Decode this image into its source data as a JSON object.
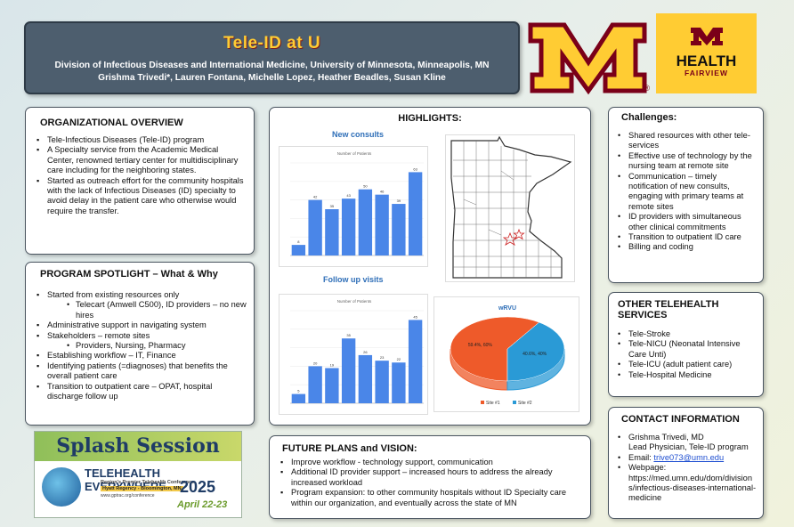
{
  "header": {
    "title": "Tele-ID at U",
    "division": "Division of Infectious Diseases and International Medicine, University of Minnesota, Minneapolis, MN",
    "authors": "Grishma Trivedi*, Lauren Fontana, Michelle Lopez, Heather Beadles, Susan Kline"
  },
  "logos": {
    "umn_registered": "®",
    "hf_line1": "HEALTH",
    "hf_line2": "FAIRVIEW"
  },
  "org_overview": {
    "title": "ORGANIZATIONAL OVERVIEW",
    "items": [
      "Tele-Infectious Diseases (Tele-ID) program",
      "A Specialty service from the Academic Medical Center, renowned tertiary center for multidisciplinary care including for the neighboring states.",
      "Started as outreach effort for the community hospitals with the lack of Infectious Diseases (ID) specialty to avoid delay in the patient care who otherwise would require the transfer."
    ]
  },
  "spotlight": {
    "title": "PROGRAM SPOTLIGHT – What & Why",
    "items": [
      "Started from existing resources only",
      "Telecart (Amwell C500), ID providers – no new hires",
      "Administrative support in navigating system",
      "Stakeholders – remote sites",
      "Providers, Nursing, Pharmacy",
      "Establishing workflow – IT, Finance",
      "Identifying patients (=diagnoses) that benefits the overall patient care",
      "Transition to outpatient care – OPAT, hospital discharge follow up"
    ]
  },
  "highlights": {
    "title": "HIGHLIGHTS:",
    "new_consults_label": "New consults",
    "follow_up_label": "Follow up visits"
  },
  "chart_data": [
    {
      "type": "bar",
      "title": "Number of Patients",
      "values": [
        8,
        42,
        35,
        43,
        50,
        46,
        39,
        63
      ],
      "ylim": [
        0,
        70
      ],
      "color": "#4a86e8"
    },
    {
      "type": "bar",
      "title": "Number of Patients",
      "values": [
        5,
        20,
        19,
        35,
        26,
        23,
        22,
        45
      ],
      "ylim": [
        0,
        50
      ],
      "color": "#4a86e8"
    },
    {
      "type": "pie",
      "title": "wRVU",
      "series": [
        {
          "name": "Site #1",
          "value": 59.4,
          "label": "59.4%, 60%",
          "color": "#ee5a2a"
        },
        {
          "name": "Site #2",
          "value": 40.6,
          "label": "40.6%, 40%",
          "color": "#2a9ad6"
        }
      ],
      "legend": "bottom"
    }
  ],
  "challenges": {
    "title": "Challenges:",
    "items": [
      "Shared resources with other tele-services",
      "Effective use of technology by the nursing team at remote site",
      "Communication – timely notification of new consults, engaging with primary teams at remote sites",
      "ID providers with simultaneous other clinical commitments",
      "Transition to outpatient ID care",
      "Billing and coding"
    ]
  },
  "other_services": {
    "title": "OTHER TELEHEALTH SERVICES",
    "items": [
      "Tele-Stroke",
      "Tele-NICU (Neonatal Intensive Care Unti)",
      "Tele-ICU (adult patient care)",
      "Tele-Hospital Medicine"
    ]
  },
  "contact": {
    "title": "CONTACT INFORMATION",
    "name": "Grishma Trivedi, MD",
    "role": "Lead Physician, Tele-ID program",
    "email_label": "Email: ",
    "email": "trive073@umn.edu",
    "web_label": "Webpage:",
    "web": "https://med.umn.edu/dom/divisions/infectious-diseases-international-medicine"
  },
  "future": {
    "title": "FUTURE PLANS and VISION:",
    "items": [
      "Improve workflow - technology support, communication",
      "Additional ID provider support – increased hours to address the already increased workload",
      "Program expansion: to other community hospitals without ID Specialty care within our organization, and eventually across the state of MN"
    ]
  },
  "splash": {
    "line1": "Splash Session",
    "line2": "TELEHEALTH EVERYWHERE",
    "tagline": "Region's Premier Telehealth Conference",
    "venue": "Hyatt Regency - Bloomington, MN",
    "url": "www.gptrac.org/conference",
    "year": "2025",
    "dates": "April 22-23"
  }
}
